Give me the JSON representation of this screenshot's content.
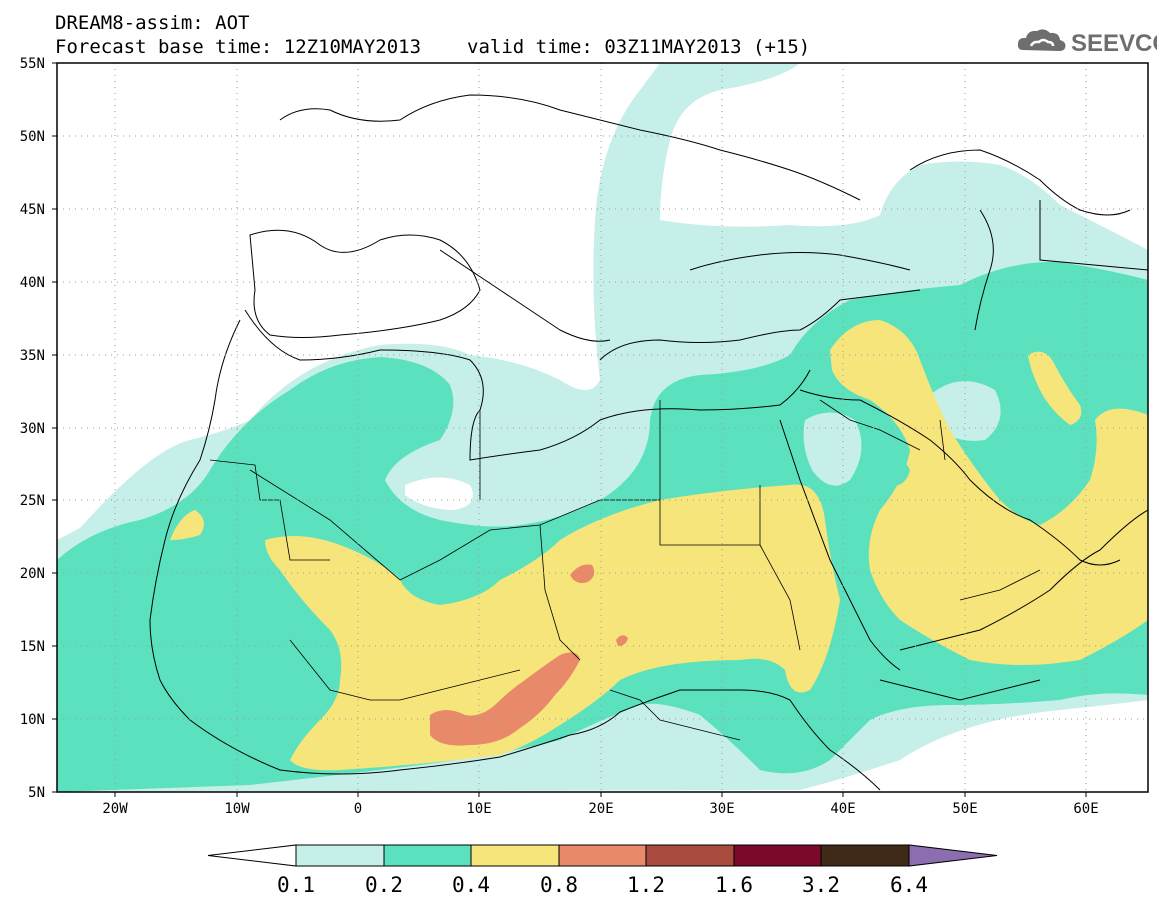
{
  "header": {
    "line1": "DREAM8-assim: AOT",
    "base_time": "Forecast base time: 12Z10MAY2013",
    "valid_time": "valid time: 03Z11MAY2013 (+15)"
  },
  "logo": {
    "icon": "cloud-icon",
    "text": "SEEVCCC"
  },
  "map": {
    "lat_labels": [
      "55N",
      "50N",
      "45N",
      "40N",
      "35N",
      "30N",
      "25N",
      "20N",
      "15N",
      "10N",
      "5N"
    ],
    "lon_labels": [
      "20W",
      "10W",
      "0",
      "10E",
      "20E",
      "30E",
      "40E",
      "50E",
      "60E"
    ],
    "lon_range": [
      -25,
      65
    ],
    "lat_range": [
      5,
      55
    ],
    "grid": "dotted"
  },
  "colorbar": {
    "thresholds": [
      "0.1",
      "0.2",
      "0.4",
      "0.8",
      "1.2",
      "1.6",
      "3.2",
      "6.4"
    ],
    "colors": [
      "#ffffff",
      "#c6efe9",
      "#5ce1bf",
      "#f6e57a",
      "#e8896a",
      "#a94c3f",
      "#7a0a2a",
      "#3e2a17",
      "#8c6db0"
    ]
  }
}
